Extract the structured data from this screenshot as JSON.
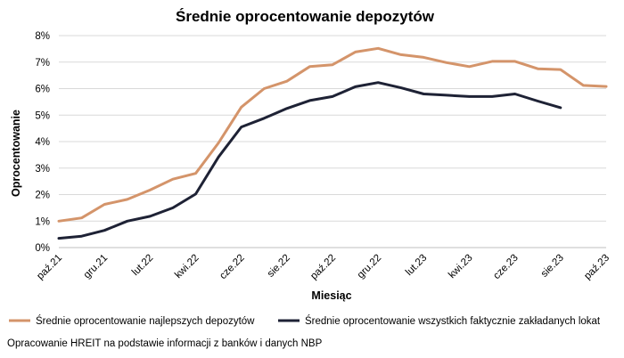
{
  "chart_data": {
    "type": "line",
    "title": "Średnie oprocentowanie depozytów",
    "xlabel": "Miesiąc",
    "ylabel": "Oprocentowanie",
    "ylim": [
      0,
      8
    ],
    "yticks": [
      "0%",
      "1%",
      "2%",
      "3%",
      "4%",
      "5%",
      "6%",
      "7%",
      "8%"
    ],
    "categories": [
      "paź.21",
      "lis.21",
      "gru.21",
      "sty.22",
      "lut.22",
      "mar.22",
      "kwi.22",
      "maj.22",
      "cze.22",
      "lip.22",
      "sie.22",
      "wrz.22",
      "paź.22",
      "lis.22",
      "gru.22",
      "sty.23",
      "lut.23",
      "mar.23",
      "kwi.23",
      "maj.23",
      "cze.23",
      "lip.23",
      "sie.23",
      "wrz.23",
      "paź.23"
    ],
    "tick_labels": [
      "paź.21",
      "gru.21",
      "lut.22",
      "kwi.22",
      "cze.22",
      "sie.22",
      "paź.22",
      "gru.22",
      "lut.23",
      "kwi.23",
      "cze.23",
      "sie.23",
      "paź.23"
    ],
    "grid": "horizontal",
    "legend_position": "bottom",
    "series": [
      {
        "name": "Średnie oprocentowanie najlepszych depozytów",
        "color": "#D4946A",
        "values": [
          1.0,
          1.12,
          1.63,
          1.82,
          2.17,
          2.58,
          2.8,
          3.95,
          5.3,
          6.0,
          6.28,
          6.83,
          6.9,
          7.38,
          7.52,
          7.28,
          7.18,
          6.98,
          6.83,
          7.03,
          7.03,
          6.75,
          6.72,
          6.12,
          6.08
        ]
      },
      {
        "name": "Średnie oprocentowanie wszystkich faktycznie zakładanych lokat",
        "color": "#1E2235",
        "values": [
          0.35,
          0.43,
          0.65,
          1.0,
          1.18,
          1.5,
          2.02,
          3.42,
          4.55,
          4.88,
          5.25,
          5.55,
          5.7,
          6.07,
          6.23,
          6.03,
          5.8,
          5.75,
          5.7,
          5.7,
          5.8,
          5.53,
          5.28,
          null,
          null
        ]
      }
    ]
  },
  "footer": {
    "note": "Opracowanie HREIT na podstawie informacji z banków i danych NBP"
  }
}
